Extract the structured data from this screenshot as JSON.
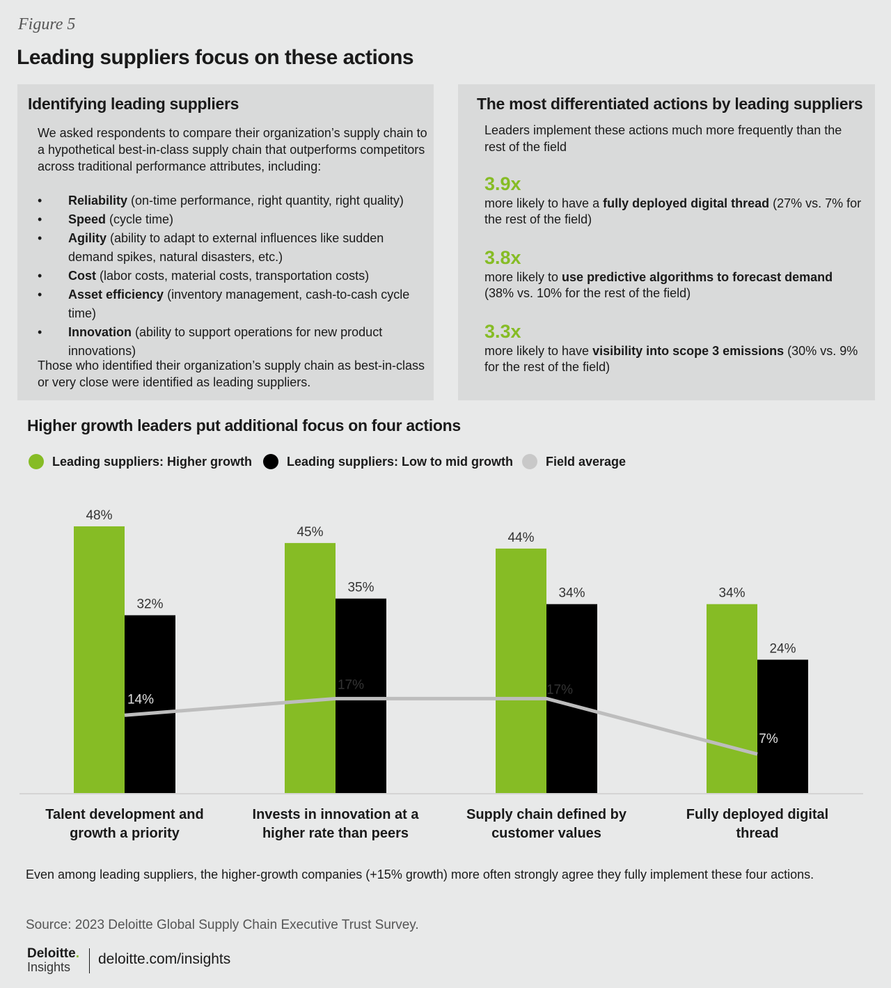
{
  "figure_label": "Figure 5",
  "title": "Leading suppliers focus on these actions",
  "left_panel": {
    "heading": "Identifying leading suppliers",
    "intro": "We asked respondents to compare their organization’s supply chain to a hypothetical best-in-class supply chain that outperforms competitors across traditional performance attributes, including:",
    "bullets": [
      {
        "term": "Reliability",
        "desc": " (on-time performance, right quantity, right quality)"
      },
      {
        "term": "Speed",
        "desc": " (cycle time)"
      },
      {
        "term": "Agility",
        "desc": " (ability to adapt to external influences like sudden demand spikes, natural disasters, etc.)"
      },
      {
        "term": "Cost",
        "desc": " (labor costs, material costs, transportation costs)"
      },
      {
        "term": "Asset efficiency",
        "desc": " (inventory management, cash-to-cash cycle time)"
      },
      {
        "term": "Innovation",
        "desc": " (ability to support operations for new product innovations)"
      }
    ],
    "closing": "Those who identified their organization’s supply chain as best-in-class or very close were identified as leading suppliers."
  },
  "right_panel": {
    "heading": "The most differentiated actions by leading suppliers",
    "intro": "Leaders implement these actions much more frequently than the rest of the field",
    "stats": [
      {
        "value": "3.9x",
        "pre": "more likely to have a ",
        "bold": "fully deployed digital thread",
        "post": " (27% vs. 7% for the rest of the field)"
      },
      {
        "value": "3.8x",
        "pre": "more likely to ",
        "bold": "use predictive algorithms to forecast demand",
        "post": " (38% vs. 10% for the rest of the field)"
      },
      {
        "value": "3.3x",
        "pre": "more likely to have ",
        "bold": "visibility into scope 3 emissions",
        "post": " (30% vs. 9% for the rest of the field)"
      }
    ]
  },
  "chart_title": "Higher growth leaders put additional focus on four actions",
  "colors": {
    "green": "#86bc25",
    "black": "#000000",
    "gray": "#bdbdbd"
  },
  "chart_data": {
    "type": "bar",
    "categories": [
      "Talent development and growth a priority",
      "Invests in innovation at a higher rate than peers",
      "Supply chain defined by customer values",
      "Fully deployed digital thread"
    ],
    "category_lines": [
      [
        "Talent development and",
        "growth a priority"
      ],
      [
        "Invests in innovation at a",
        "higher rate than peers"
      ],
      [
        "Supply chain defined by",
        "customer values"
      ],
      [
        "Fully deployed digital",
        "thread"
      ]
    ],
    "series": [
      {
        "name": "Leading suppliers: Higher growth",
        "type": "bar",
        "color": "#86bc25",
        "values": [
          48,
          45,
          44,
          34
        ],
        "labels": [
          "48%",
          "45%",
          "44%",
          "34%"
        ]
      },
      {
        "name": "Leading suppliers: Low to mid growth",
        "type": "bar",
        "color": "#000000",
        "values": [
          32,
          35,
          34,
          24
        ],
        "labels": [
          "32%",
          "35%",
          "34%",
          "24%"
        ]
      },
      {
        "name": "Field average",
        "type": "line",
        "color": "#bdbdbd",
        "values": [
          14,
          17,
          17,
          7
        ],
        "labels": [
          "14%",
          "17%",
          "17%",
          "7%"
        ]
      }
    ],
    "ylim": [
      0,
      50
    ],
    "unit": "%",
    "grid": false,
    "legend_position": "top-left"
  },
  "footnote": "Even among leading suppliers, the higher-growth companies (+15% growth) more often strongly agree they fully implement these four actions.",
  "source": "Source: 2023 Deloitte Global Supply Chain Executive Trust Survey.",
  "logo": {
    "brand": "Deloitte",
    "brand_dot": ".",
    "sub": "Insights"
  },
  "site": "deloitte.com/insights"
}
